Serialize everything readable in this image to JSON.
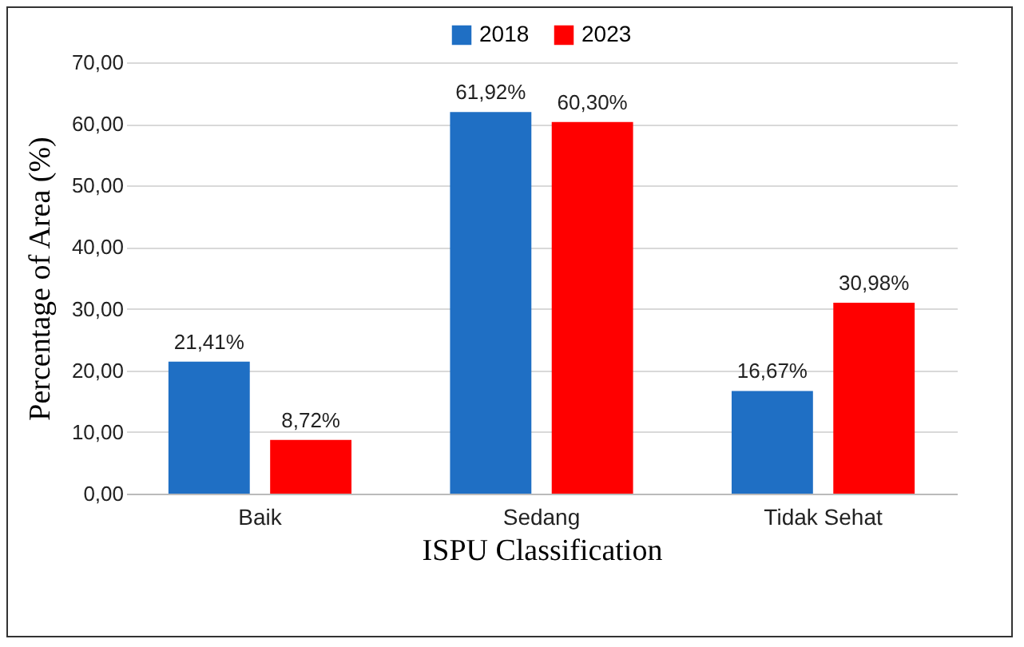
{
  "chart_data": {
    "type": "bar",
    "xlabel": "ISPU Classification",
    "ylabel": "Percentage of Area (%)",
    "categories": [
      "Baik",
      "Sedang",
      "Tidak Sehat"
    ],
    "series": [
      {
        "name": "2018",
        "color": "#1f6fc4",
        "values": [
          21.41,
          61.92,
          16.67
        ],
        "value_labels": [
          "21,41%",
          "61,92%",
          "16,67%"
        ]
      },
      {
        "name": "2023",
        "color": "#ff0000",
        "values": [
          8.72,
          60.3,
          30.98
        ],
        "value_labels": [
          "8,72%",
          "60,30%",
          "30,98%"
        ]
      }
    ],
    "ylim": [
      0,
      70
    ],
    "yticks": [
      {
        "value": 0,
        "label": "0,00"
      },
      {
        "value": 10,
        "label": "10,00"
      },
      {
        "value": 20,
        "label": "20,00"
      },
      {
        "value": 30,
        "label": "30,00"
      },
      {
        "value": 40,
        "label": "40,00"
      },
      {
        "value": 50,
        "label": "50,00"
      },
      {
        "value": 60,
        "label": "60,00"
      },
      {
        "value": 70,
        "label": "70,00"
      }
    ],
    "grid": "y",
    "legend": "top"
  }
}
